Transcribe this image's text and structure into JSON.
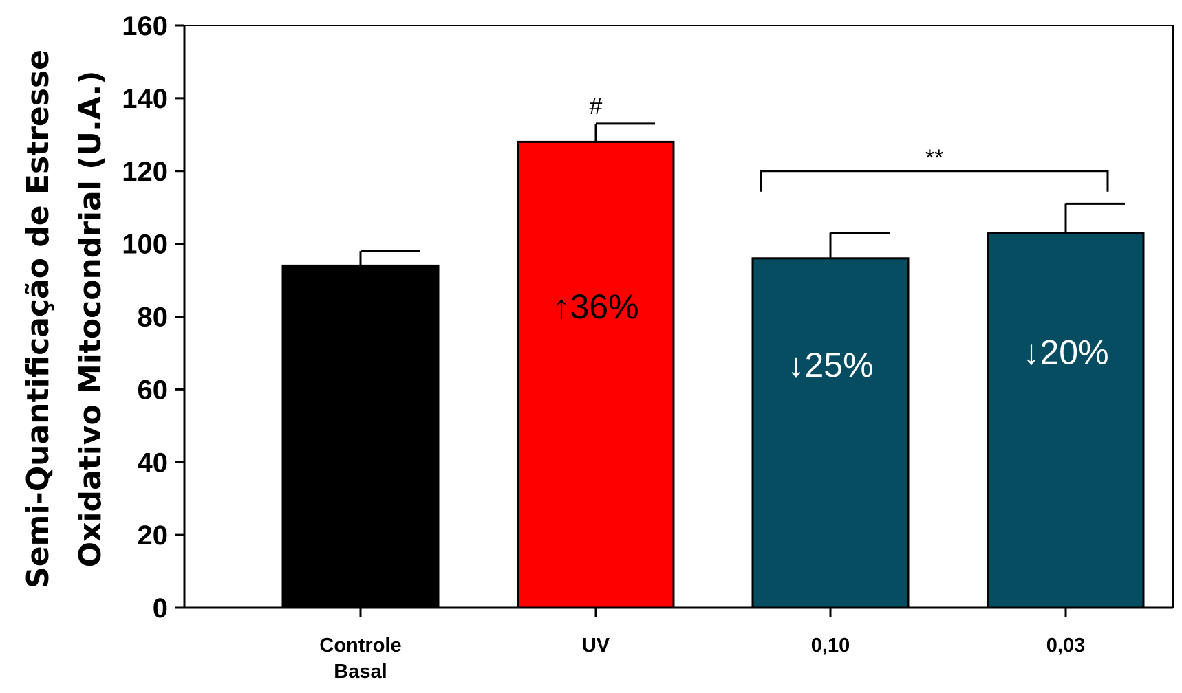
{
  "chart_data": {
    "type": "bar",
    "categories": [
      [
        "Controle",
        "Basal"
      ],
      [
        "UV"
      ],
      [
        "0,10"
      ],
      [
        "0,03"
      ]
    ],
    "values": [
      94,
      128,
      96,
      103
    ],
    "errors": [
      4,
      5,
      7,
      8
    ],
    "bar_colors": [
      "#000000",
      "#ff0000",
      "#064d61",
      "#064d61"
    ],
    "bar_labels": [
      "",
      "↑36%",
      "↓25%",
      "↓20%"
    ],
    "bar_label_colors": [
      "#ffffff",
      "#000000",
      "#ffffff",
      "#ffffff"
    ],
    "ylabel_lines": [
      "Semi-Quantificação de Estresse",
      "Oxidativo Mitocondrial (U.A.)"
    ],
    "ylim": [
      0,
      160
    ],
    "yticks": [
      0,
      20,
      40,
      60,
      80,
      100,
      120,
      140,
      160
    ],
    "grid": false,
    "annotations": [
      {
        "text": "#",
        "category_index": 1,
        "type": "above-bar"
      },
      {
        "text": "**",
        "type": "bracket",
        "from_index": 2,
        "to_index": 3,
        "level": 120
      }
    ]
  }
}
